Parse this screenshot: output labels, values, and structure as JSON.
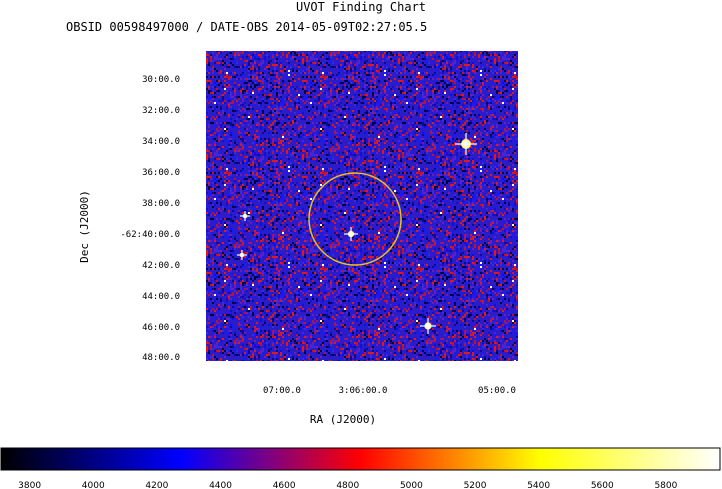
{
  "chart_data": {
    "type": "heatmap",
    "title": "UVOT Finding Chart",
    "subtitle": "OBSID 00598497000 / DATE-OBS 2014-05-09T02:27:05.5",
    "xlabel": "RA (J2000)",
    "ylabel": "Dec (J2000)",
    "x_ticks": [
      "07:00.0",
      "3:06:00.0",
      "05:00.0"
    ],
    "y_ticks": [
      "30:00.0",
      "32:00.0",
      "34:00.0",
      "36:00.0",
      "38:00.0",
      "-62:40:00.0",
      "42:00.0",
      "44:00.0",
      "46:00.0",
      "48:00.0"
    ],
    "colorbar": {
      "ticks": [
        3800,
        4000,
        4200,
        4400,
        4600,
        4800,
        5000,
        5200,
        5400,
        5600,
        5800
      ],
      "range": [
        3710,
        5970
      ],
      "colors": [
        "#000000",
        "#0000ff",
        "#ff0000",
        "#ffff00",
        "#ffffff"
      ]
    },
    "marker": {
      "type": "circle",
      "color": "#e8c020"
    },
    "sources": [
      {
        "name": "bright-star-ne",
        "brightness": "very-bright"
      },
      {
        "name": "bright-star-se",
        "brightness": "bright"
      },
      {
        "name": "star-center",
        "brightness": "bright"
      },
      {
        "name": "star-west-1",
        "brightness": "medium"
      },
      {
        "name": "star-west-2",
        "brightness": "medium"
      }
    ]
  }
}
